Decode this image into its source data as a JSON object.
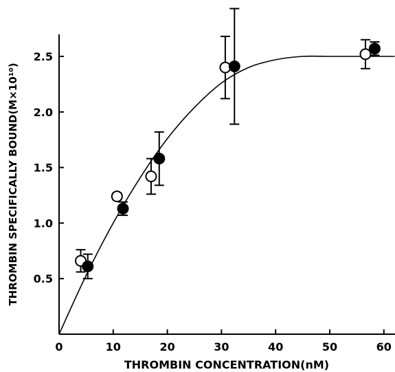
{
  "chart_data": {
    "type": "scatter",
    "title": "",
    "xlabel": "THROMBIN CONCENTRATION(nM)",
    "ylabel": "THROMBIN SPECIFICALLY BOUND(M×10¹⁰)",
    "xlim": [
      0,
      62
    ],
    "ylim": [
      0,
      2.75
    ],
    "x_ticks": [
      "0",
      "10",
      "20",
      "30",
      "40",
      "50",
      "60"
    ],
    "y_ticks": [
      "0.5",
      "1.0",
      "1.5",
      "2.0",
      "2.5"
    ],
    "grid": false,
    "legend": "none",
    "series": [
      {
        "marker": "open-circle",
        "points": [
          {
            "x": 4.0,
            "y": 0.66,
            "err": 0.1
          },
          {
            "x": 10.7,
            "y": 1.24,
            "err": 0.03
          },
          {
            "x": 17.0,
            "y": 1.42,
            "err": 0.16
          },
          {
            "x": 30.7,
            "y": 2.4,
            "err": 0.28
          },
          {
            "x": 56.6,
            "y": 2.52,
            "err": 0.13
          }
        ]
      },
      {
        "marker": "filled-circle",
        "points": [
          {
            "x": 5.3,
            "y": 0.61,
            "err": 0.11
          },
          {
            "x": 11.8,
            "y": 1.13,
            "err": 0.06
          },
          {
            "x": 18.5,
            "y": 1.58,
            "err": 0.24
          },
          {
            "x": 32.4,
            "y": 2.41,
            "err": 0.52
          },
          {
            "x": 58.3,
            "y": 2.57,
            "err": 0.06
          }
        ]
      }
    ],
    "fit_curve": {
      "type": "saturation",
      "points": [
        [
          0,
          0
        ],
        [
          5,
          0.53
        ],
        [
          10,
          1.0
        ],
        [
          15,
          1.41
        ],
        [
          20,
          1.76
        ],
        [
          25,
          2.04
        ],
        [
          30,
          2.26
        ],
        [
          35,
          2.4
        ],
        [
          40,
          2.47
        ],
        [
          45,
          2.5
        ],
        [
          50,
          2.5
        ],
        [
          55,
          2.5
        ],
        [
          62,
          2.5
        ]
      ]
    }
  }
}
